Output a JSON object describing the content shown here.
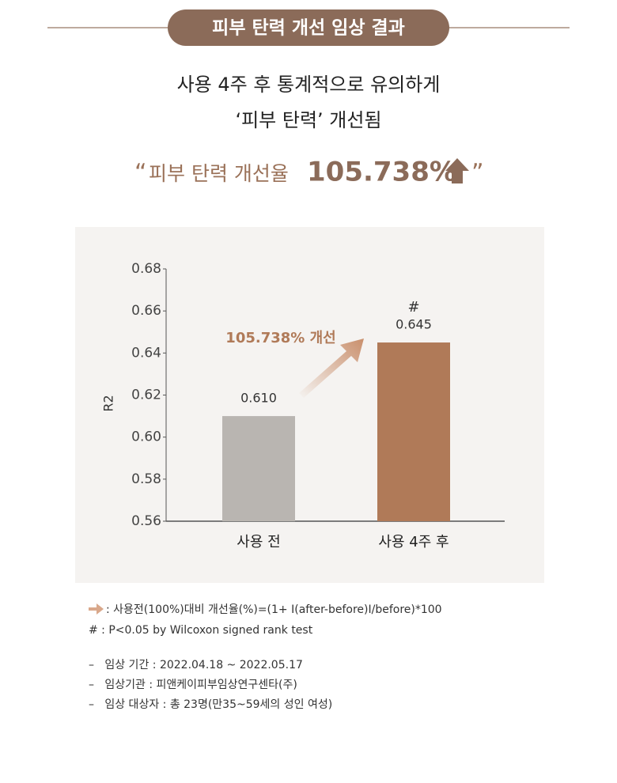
{
  "header": {
    "title": "피부 탄력 개선 임상 결과"
  },
  "headline": [
    "사용 4주 후 통계적으로 유의하게",
    "‘피부 탄력’ 개선됨"
  ],
  "quote": {
    "open": "“",
    "text": "피부 탄력 개선율",
    "highlight": "105.738%",
    "close": "”"
  },
  "chart_data": {
    "type": "bar",
    "categories": [
      "사용 전",
      "사용 4주 후"
    ],
    "values": [
      0.61,
      0.645
    ],
    "value_labels": [
      "0.610",
      "0.645"
    ],
    "colors": [
      "#b9b5b1",
      "#b07a58"
    ],
    "ylabel": "R2",
    "ylim": [
      0.56,
      0.68
    ],
    "yticks": [
      0.56,
      0.58,
      {
        "value": 0.6,
        "label": "0.60"
      },
      0.62,
      0.64,
      0.66,
      0.68
    ],
    "annotations": [
      "#",
      "105.738% 개선"
    ],
    "grid": false
  },
  "notes": [
    ": 사용전(100%)대비 개선율(%)=(1+ I(after-before)I/before)*100",
    "# : P<0.05 by Wilcoxon signed rank test"
  ],
  "details": [
    "–   임상 기간 : 2022.04.18 ~ 2022.05.17",
    "–   임상기관 : 피앤케이피부임상연구센타(주)",
    "–   임상 대상자 : 총 23명(만35~59세의 성인 여성)"
  ]
}
